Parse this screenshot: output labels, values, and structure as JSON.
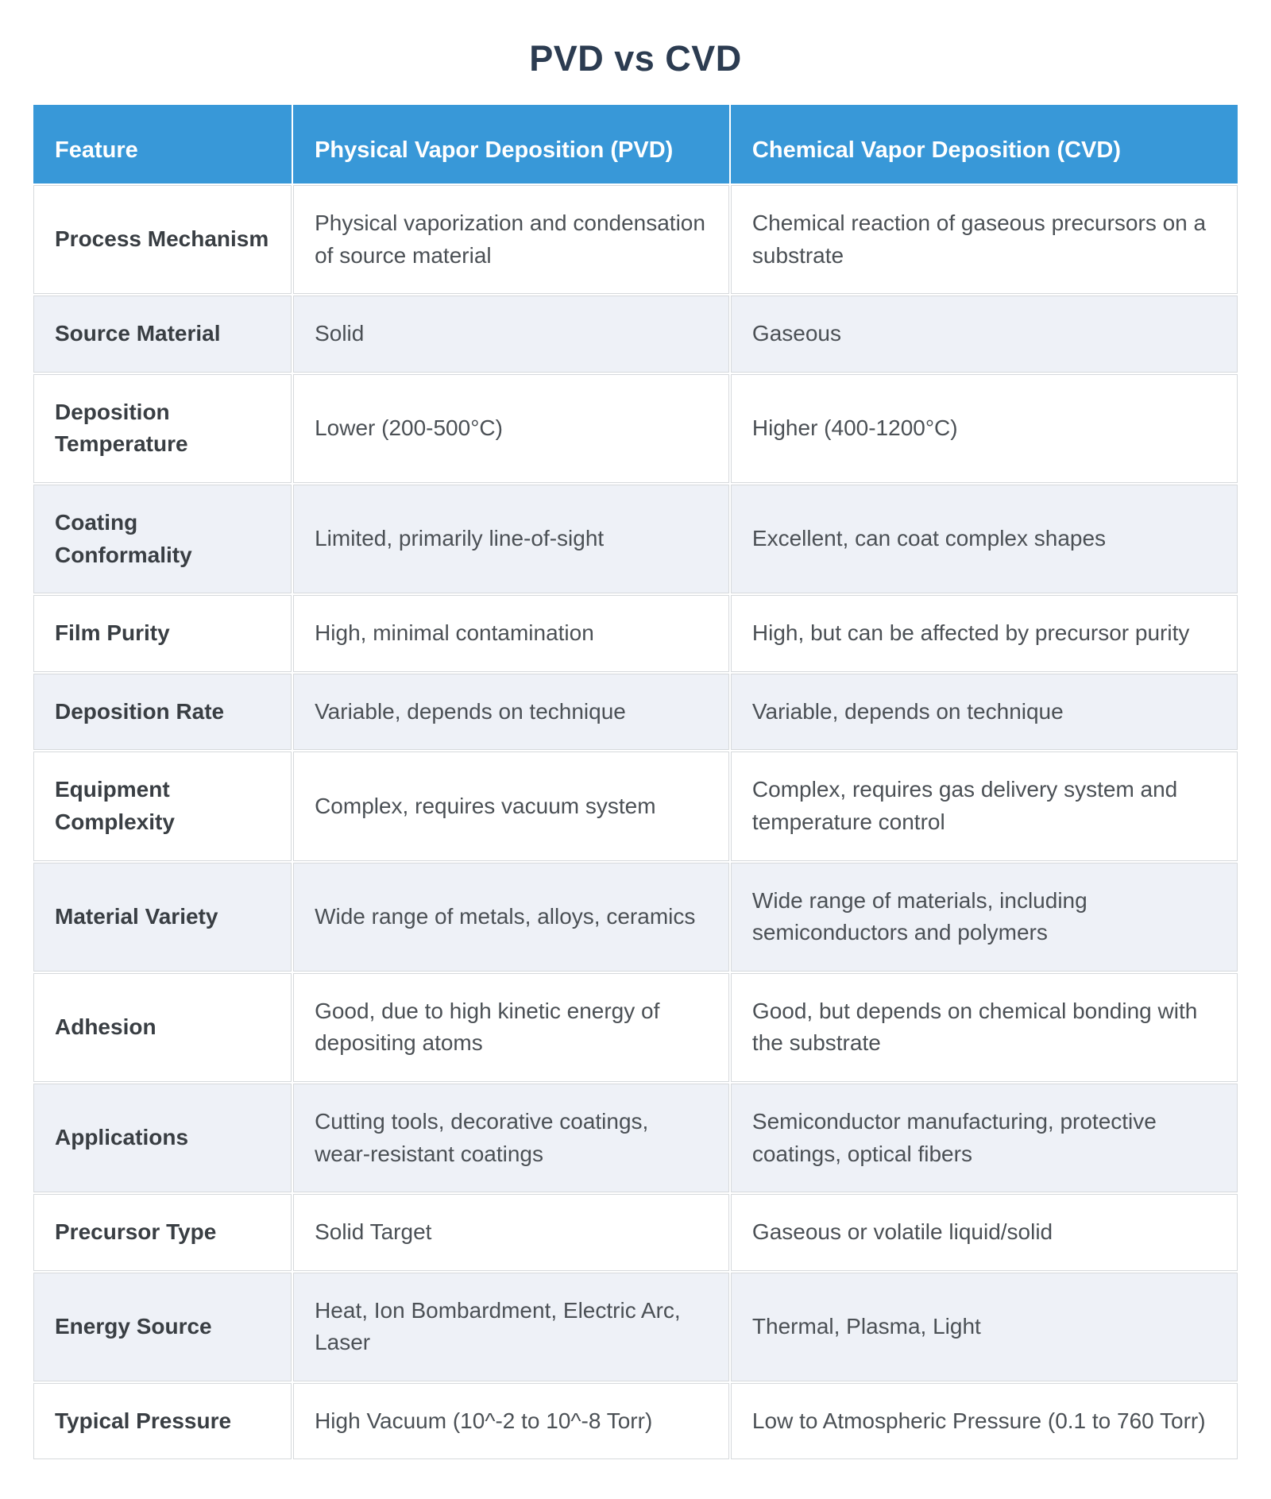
{
  "page": {
    "title": "PVD vs CVD"
  },
  "colors": {
    "header_bg": "#3898d8",
    "header_text": "#ffffff",
    "title_text": "#2c3c51",
    "stripe_bg": "#eef1f7",
    "row_bg": "#ffffff",
    "cell_border": "#d6d9dc",
    "feature_text": "#393e43",
    "body_text": "#4b5055"
  },
  "table": {
    "columns": [
      "Feature",
      "Physical Vapor Deposition (PVD)",
      "Chemical Vapor Deposition (CVD)"
    ],
    "rows": [
      {
        "feature": "Process Mechanism",
        "pvd": "Physical vaporization and condensation of source material",
        "cvd": "Chemical reaction of gaseous precursors on a substrate"
      },
      {
        "feature": "Source Material",
        "pvd": "Solid",
        "cvd": "Gaseous"
      },
      {
        "feature": "Deposition Temperature",
        "pvd": "Lower (200-500°C)",
        "cvd": "Higher (400-1200°C)"
      },
      {
        "feature": "Coating Conformality",
        "pvd": "Limited, primarily line-of-sight",
        "cvd": "Excellent, can coat complex shapes"
      },
      {
        "feature": "Film Purity",
        "pvd": "High, minimal contamination",
        "cvd": "High, but can be affected by precursor purity"
      },
      {
        "feature": "Deposition Rate",
        "pvd": "Variable, depends on technique",
        "cvd": "Variable, depends on technique"
      },
      {
        "feature": "Equipment Complexity",
        "pvd": "Complex, requires vacuum system",
        "cvd": "Complex, requires gas delivery system and temperature control"
      },
      {
        "feature": "Material Variety",
        "pvd": "Wide range of metals, alloys, ceramics",
        "cvd": "Wide range of materials, including semiconductors and polymers"
      },
      {
        "feature": "Adhesion",
        "pvd": "Good, due to high kinetic energy of depositing atoms",
        "cvd": "Good, but depends on chemical bonding with the substrate"
      },
      {
        "feature": "Applications",
        "pvd": "Cutting tools, decorative coatings, wear-resistant coatings",
        "cvd": "Semiconductor manufacturing, protective coatings, optical fibers"
      },
      {
        "feature": "Precursor Type",
        "pvd": "Solid Target",
        "cvd": "Gaseous or volatile liquid/solid"
      },
      {
        "feature": "Energy Source",
        "pvd": "Heat, Ion Bombardment, Electric Arc, Laser",
        "cvd": "Thermal, Plasma, Light"
      },
      {
        "feature": "Typical Pressure",
        "pvd": "High Vacuum (10^-2 to 10^-8 Torr)",
        "cvd": "Low to Atmospheric Pressure (0.1 to 760 Torr)"
      }
    ]
  }
}
